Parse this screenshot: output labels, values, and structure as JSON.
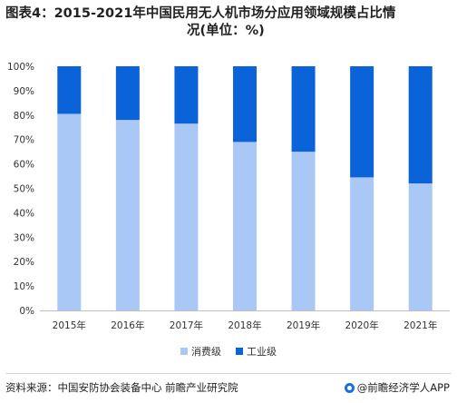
{
  "title": {
    "line1": "图表4：2015-2021年中国民用无人机市场分应用领域规模占比情",
    "line2": "况(单位：%)"
  },
  "source": "资料来源：中国安防协会装备中心 前瞻产业研究院",
  "brand": "@前瞻经济学人APP",
  "colors": {
    "consumer": "#a9c8f5",
    "industrial": "#0a63d8",
    "axis": "#bfbfbf",
    "text": "#333333"
  },
  "chart_data": {
    "type": "bar",
    "stacked": true,
    "categories": [
      "2015年",
      "2016年",
      "2017年",
      "2018年",
      "2019年",
      "2020年",
      "2021年"
    ],
    "series": [
      {
        "name": "消费级",
        "values": [
          80.5,
          78.0,
          76.5,
          69.0,
          65.0,
          54.5,
          52.0
        ]
      },
      {
        "name": "工业级",
        "values": [
          19.5,
          22.0,
          23.5,
          31.0,
          35.0,
          45.5,
          48.0
        ]
      }
    ],
    "ylim": [
      0,
      100
    ],
    "yticks": [
      "0%",
      "10%",
      "20%",
      "30%",
      "40%",
      "50%",
      "60%",
      "70%",
      "80%",
      "90%",
      "100%"
    ],
    "grid": false,
    "legend": "bottom"
  }
}
